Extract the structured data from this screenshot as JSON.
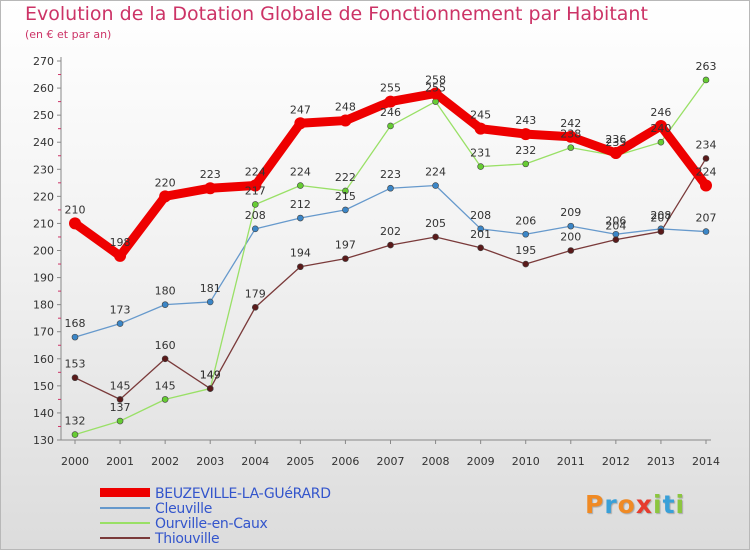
{
  "header": {
    "title": "Evolution de la Dotation Globale de Fonctionnement par Habitant",
    "subtitle": "(en € et par an)"
  },
  "brand": {
    "text": "Proxiti",
    "colors": [
      "#f08a24",
      "#39a0d8",
      "#f08a24",
      "#e63c2e",
      "#8cc63f",
      "#39a0d8",
      "#8cc63f"
    ]
  },
  "chart_data": {
    "type": "line",
    "title": "Evolution de la Dotation Globale de Fonctionnement par Habitant",
    "subtitle": "(en € et par an)",
    "x": [
      "2000",
      "2001",
      "2002",
      "2003",
      "2004",
      "2005",
      "2006",
      "2007",
      "2008",
      "2009",
      "2010",
      "2011",
      "2012",
      "2013",
      "2014"
    ],
    "ylim": [
      130,
      270
    ],
    "yticks": [
      130,
      140,
      150,
      160,
      170,
      180,
      190,
      200,
      210,
      220,
      230,
      240,
      250,
      260,
      270
    ],
    "grid": false,
    "legend_position": "bottom-left",
    "series": [
      {
        "name": "BEUZEVILLE-LA-GUéRARD",
        "color": "#ee0000",
        "marker_color": "#ee0000",
        "values": [
          210,
          198,
          220,
          223,
          224,
          247,
          248,
          255,
          258,
          245,
          243,
          242,
          236,
          246,
          224
        ]
      },
      {
        "name": "Cleuville",
        "color": "#6699cc",
        "marker_color": "#3b86c7",
        "values": [
          168,
          173,
          180,
          181,
          208,
          212,
          215,
          223,
          224,
          208,
          206,
          209,
          206,
          208,
          207
        ]
      },
      {
        "name": "Ourville-en-Caux",
        "color": "#99e066",
        "marker_color": "#66cc33",
        "values": [
          132,
          137,
          145,
          149,
          217,
          224,
          222,
          246,
          255,
          231,
          232,
          238,
          235,
          240,
          263
        ]
      },
      {
        "name": "Thiouville",
        "color": "#7a3a3a",
        "marker_color": "#5a1a1a",
        "values": [
          153,
          145,
          160,
          149,
          179,
          194,
          197,
          202,
          205,
          201,
          195,
          200,
          204,
          207,
          234
        ]
      }
    ]
  }
}
